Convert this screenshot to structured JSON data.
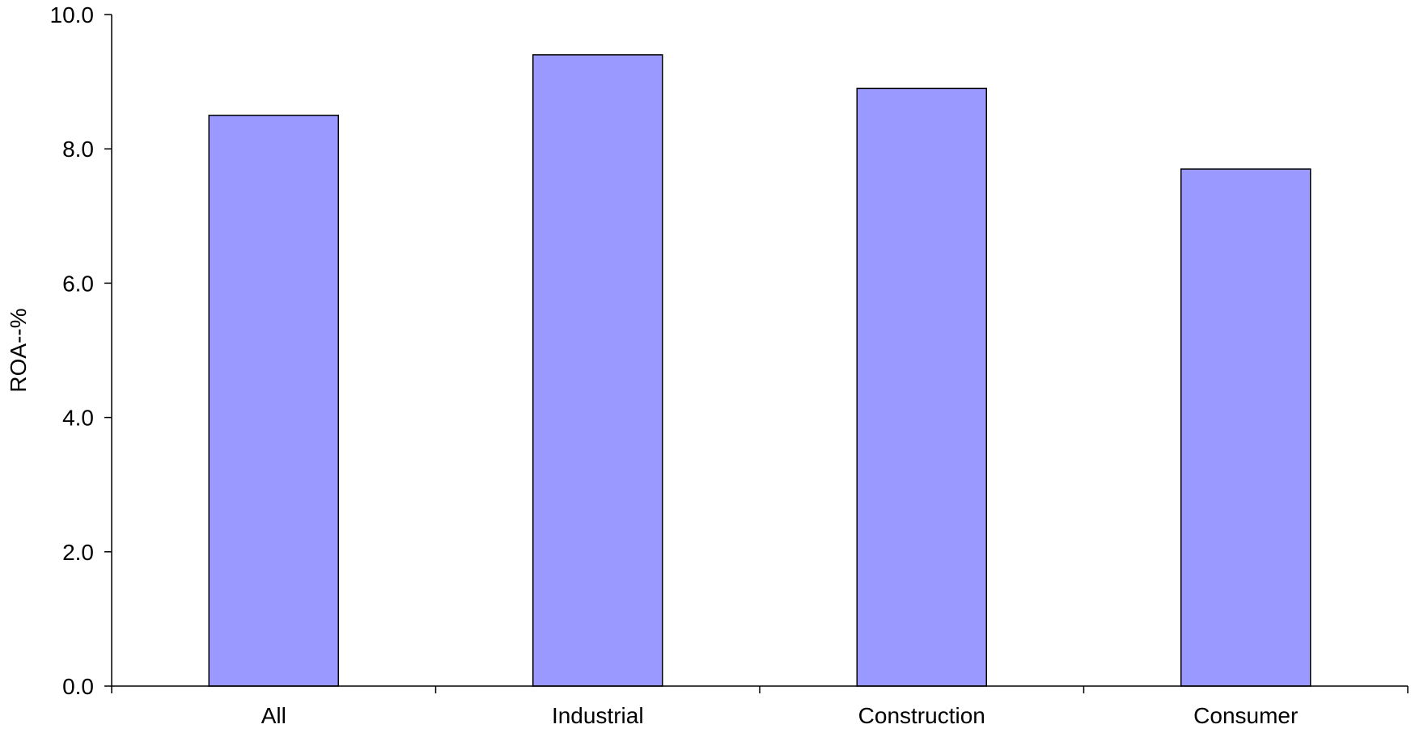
{
  "chart_data": {
    "type": "bar",
    "title": "",
    "xlabel": "",
    "ylabel": "ROA--%",
    "categories": [
      "All",
      "Industrial",
      "Construction",
      "Consumer"
    ],
    "values": [
      8.5,
      9.4,
      8.9,
      7.7
    ],
    "ylim": [
      0,
      10
    ],
    "y_ticks": [
      "0.0",
      "2.0",
      "4.0",
      "6.0",
      "8.0",
      "10.0"
    ],
    "y_tick_values": [
      0,
      2,
      4,
      6,
      8,
      10
    ],
    "grid": false,
    "legend": "none",
    "bar_color": "#9999ff",
    "bar_edge_color": "#000000"
  }
}
